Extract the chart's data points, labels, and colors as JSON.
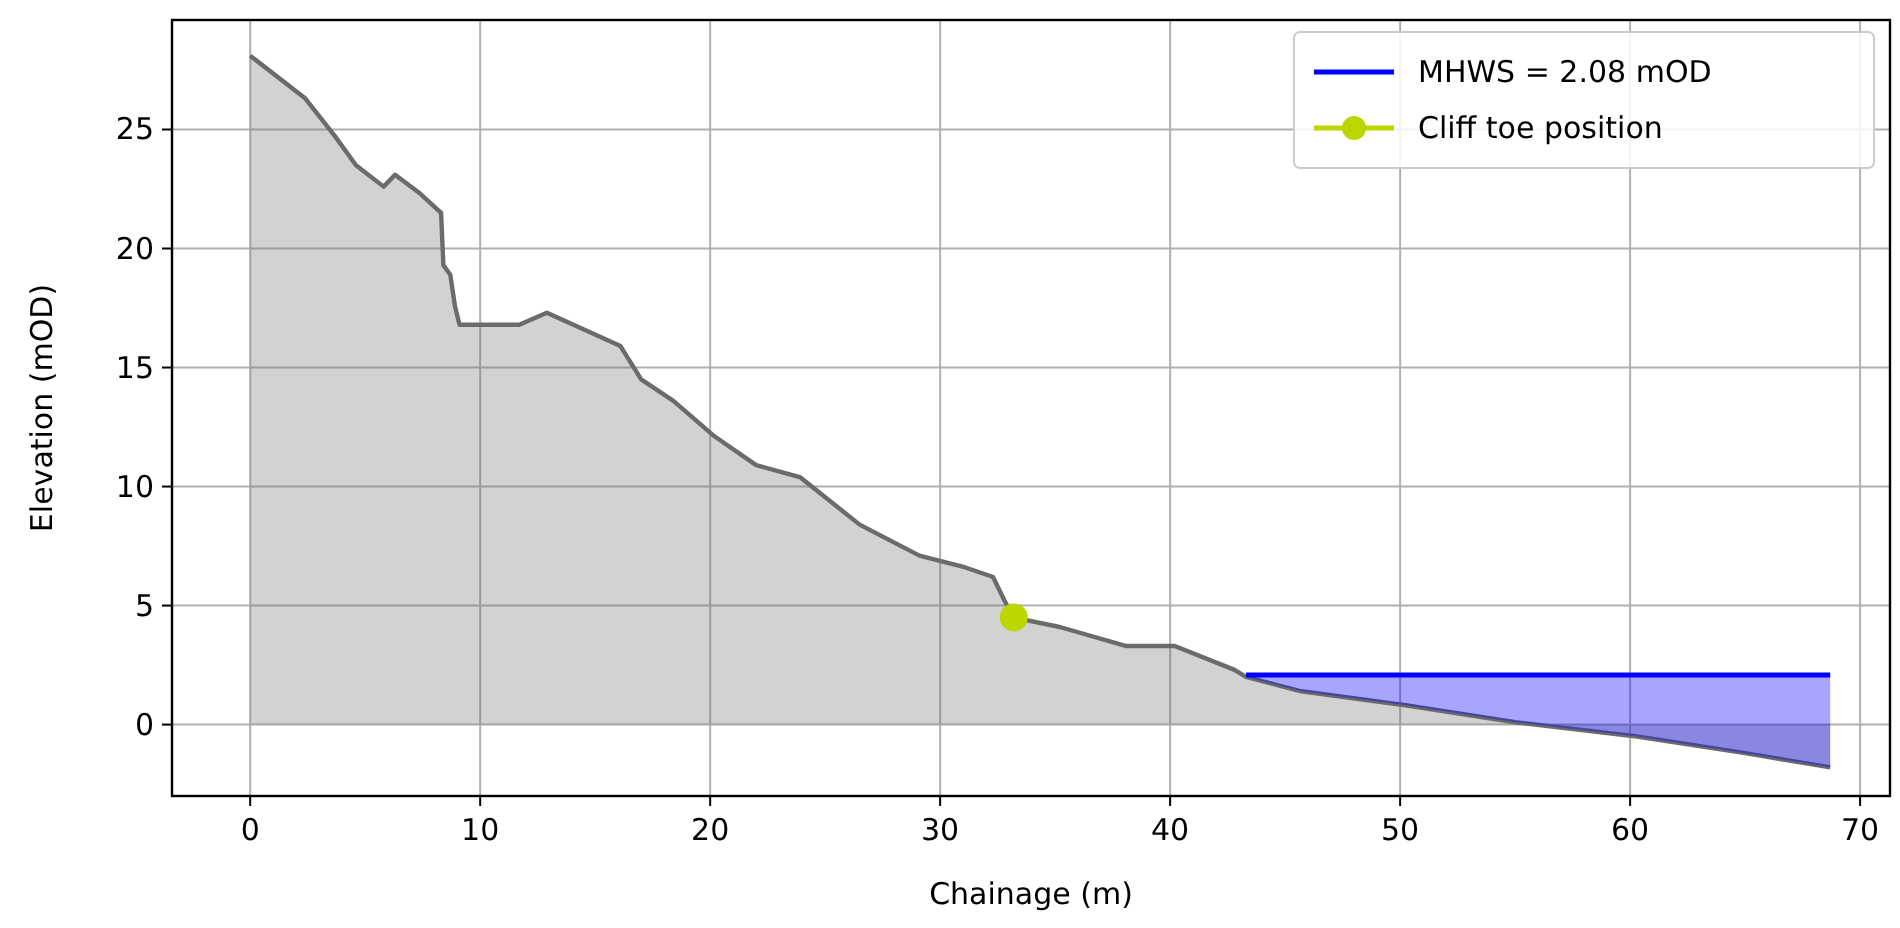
{
  "chart_data": {
    "type": "area",
    "xlabel": "Chainage (m)",
    "ylabel": "Elevation (mOD)",
    "xlim": [
      -3.4,
      71.3
    ],
    "ylim": [
      -3,
      29.6
    ],
    "xticks": [
      0,
      10,
      20,
      30,
      40,
      50,
      60,
      70
    ],
    "yticks": [
      0,
      5,
      10,
      15,
      20,
      25
    ],
    "grid": true,
    "legend": "top right",
    "line_style": "solid",
    "series": [
      {
        "color": "#6b6b6b",
        "x": [
          0,
          2.4,
          3.7,
          4.6,
          5.8,
          6.3,
          7.4,
          8.3,
          8.4,
          8.7,
          8.9,
          9.1,
          11.7,
          12.9,
          16.1,
          17,
          18.4,
          20.2,
          22,
          23.9,
          26.5,
          29.1,
          31.1,
          32.3,
          32.8,
          33.2,
          35.2,
          38.1,
          40.2,
          42.8,
          43.3,
          45.7,
          50.3,
          55,
          60.3,
          65,
          68.7
        ],
        "values": [
          28.1,
          26.3,
          24.7,
          23.5,
          22.6,
          23.1,
          22.3,
          21.5,
          19.3,
          18.9,
          17.6,
          16.8,
          16.8,
          17.3,
          15.9,
          14.5,
          13.6,
          12.1,
          10.9,
          10.4,
          8.4,
          7.1,
          6.6,
          6.2,
          5.2,
          4.5,
          4.1,
          3.3,
          3.3,
          2.3,
          2.0,
          1.4,
          0.8,
          0.1,
          -0.5,
          -1.2,
          -1.8
        ]
      },
      {
        "type": "line",
        "name": "MHWS = 2.08 mOD",
        "color": "#0000ff",
        "x": [
          43.3,
          45.7,
          50.3,
          55,
          60.3,
          65,
          68.7
        ],
        "values": [
          2.08,
          2.08,
          2.08,
          2.08,
          2.08,
          2.08,
          2.08
        ],
        "lower": [
          2.0,
          1.4,
          0.8,
          0.1,
          -0.5,
          -1.2,
          -1.8
        ],
        "upper": [
          2.08,
          2.08,
          2.08,
          2.08,
          2.08,
          2.08,
          2.08
        ]
      },
      {
        "type": "scatter",
        "name": "Cliff toe position",
        "color": "#bcd600",
        "marker": "circle",
        "x": [
          33.2
        ],
        "values": [
          4.5
        ]
      }
    ]
  }
}
